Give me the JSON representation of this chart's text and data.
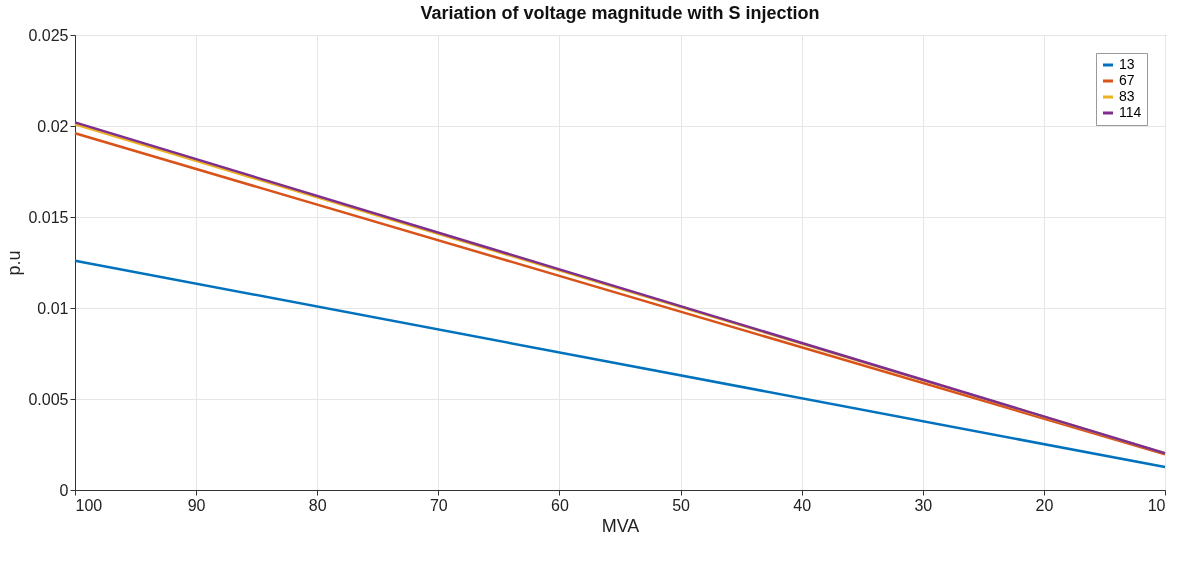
{
  "chart_data": {
    "type": "line",
    "title": "Variation of voltage magnitude with S injection",
    "xlabel": "MVA",
    "ylabel": "p.u",
    "x": [
      100,
      10
    ],
    "series": [
      {
        "name": "13",
        "color": "#0072bd",
        "values": [
          0.0126,
          0.00126
        ]
      },
      {
        "name": "67",
        "color": "#d95319",
        "values": [
          0.0196,
          0.00196
        ]
      },
      {
        "name": "83",
        "color": "#edb120",
        "values": [
          0.0201,
          0.00201
        ]
      },
      {
        "name": "114",
        "color": "#7e2f8e",
        "values": [
          0.0202,
          0.00202
        ]
      }
    ],
    "xlim": [
      100,
      10
    ],
    "xticks": [
      100,
      90,
      80,
      70,
      60,
      50,
      40,
      30,
      20,
      10
    ],
    "ylim": [
      0,
      0.025
    ],
    "yticks": [
      0,
      0.005,
      0.01,
      0.015,
      0.02,
      0.025
    ],
    "grid": true,
    "legend": "top right",
    "marker": "none",
    "line_style": "solid"
  }
}
